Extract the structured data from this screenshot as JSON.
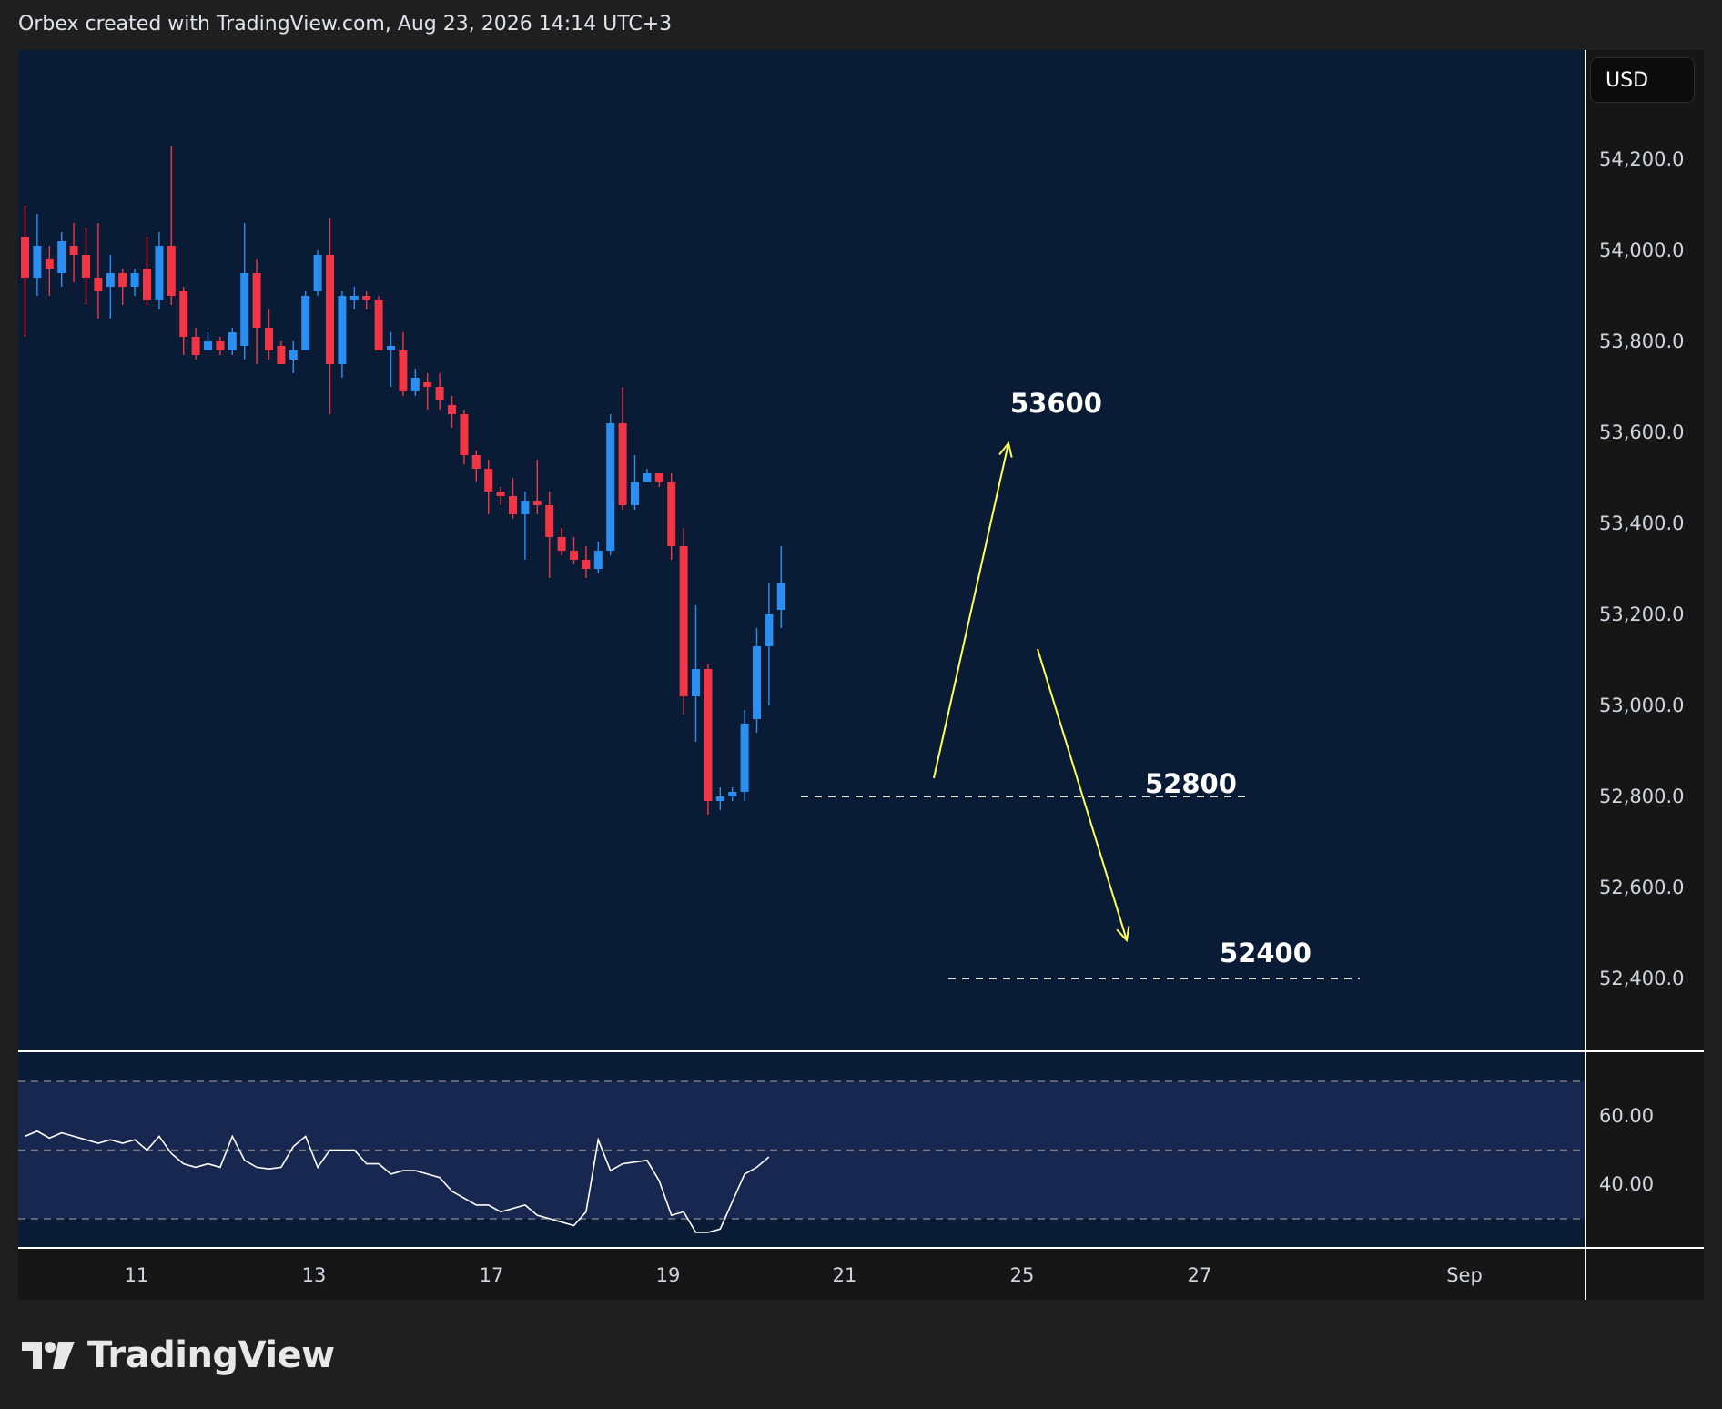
{
  "header": {
    "attribution": "Orbex created with TradingView.com, Aug 23, 2026 14:14 UTC+3"
  },
  "price_axis": {
    "currency_label": "USD"
  },
  "brand": {
    "name": "TradingView",
    "logo_icon": "tradingview-logo-icon"
  },
  "colors": {
    "background": "#0a1b36",
    "up": "#2a8ff0",
    "down": "#f23645",
    "annotation_arrow": "#ffff55",
    "rsi_band": "#172750",
    "rsi_line": "#ffffff"
  },
  "chart_data": [
    {
      "type": "candlestick",
      "title": "",
      "ylim": [
        52240,
        54440
      ],
      "y_ticks": [
        {
          "value": 54200,
          "label": "54,200.0"
        },
        {
          "value": 54000,
          "label": "54,000.0"
        },
        {
          "value": 53800,
          "label": "53,800.0"
        },
        {
          "value": 53600,
          "label": "53,600.0"
        },
        {
          "value": 53400,
          "label": "53,400.0"
        },
        {
          "value": 53200,
          "label": "53,200.0"
        },
        {
          "value": 53000,
          "label": "53,000.0"
        },
        {
          "value": 52800,
          "label": "52,800.0"
        },
        {
          "value": 52600,
          "label": "52,600.0"
        },
        {
          "value": 52400,
          "label": "52,400.0"
        }
      ],
      "x_ticks": [
        "11",
        "13",
        "17",
        "19",
        "21",
        "25",
        "27",
        "Sep"
      ],
      "candles": [
        [
          54030,
          53940,
          54100,
          53810
        ],
        [
          53940,
          54010,
          54080,
          53900
        ],
        [
          53980,
          53960,
          54010,
          53900
        ],
        [
          53950,
          54020,
          54040,
          53920
        ],
        [
          54010,
          53990,
          54060,
          53930
        ],
        [
          53990,
          53940,
          54050,
          53880
        ],
        [
          53940,
          53910,
          54060,
          53850
        ],
        [
          53920,
          53950,
          53990,
          53850
        ],
        [
          53950,
          53920,
          53960,
          53880
        ],
        [
          53920,
          53950,
          53960,
          53900
        ],
        [
          53960,
          53890,
          54030,
          53880
        ],
        [
          53890,
          54010,
          54040,
          53870
        ],
        [
          54010,
          53900,
          54230,
          53880
        ],
        [
          53910,
          53810,
          53920,
          53770
        ],
        [
          53810,
          53770,
          53830,
          53760
        ],
        [
          53780,
          53800,
          53820,
          53780
        ],
        [
          53800,
          53780,
          53810,
          53770
        ],
        [
          53780,
          53820,
          53830,
          53770
        ],
        [
          53790,
          53950,
          54060,
          53760
        ],
        [
          53950,
          53830,
          53980,
          53750
        ],
        [
          53830,
          53780,
          53870,
          53760
        ],
        [
          53790,
          53750,
          53800,
          53750
        ],
        [
          53760,
          53780,
          53800,
          53730
        ],
        [
          53780,
          53900,
          53910,
          53780
        ],
        [
          53910,
          53990,
          54000,
          53900
        ],
        [
          53990,
          53750,
          54070,
          53640
        ],
        [
          53750,
          53900,
          53910,
          53720
        ],
        [
          53890,
          53900,
          53920,
          53870
        ],
        [
          53900,
          53890,
          53910,
          53870
        ],
        [
          53890,
          53780,
          53900,
          53780
        ],
        [
          53780,
          53790,
          53820,
          53700
        ],
        [
          53780,
          53690,
          53820,
          53680
        ],
        [
          53690,
          53720,
          53740,
          53680
        ],
        [
          53710,
          53700,
          53730,
          53650
        ],
        [
          53700,
          53670,
          53730,
          53650
        ],
        [
          53660,
          53640,
          53680,
          53610
        ],
        [
          53640,
          53550,
          53650,
          53530
        ],
        [
          53550,
          53520,
          53560,
          53490
        ],
        [
          53520,
          53470,
          53540,
          53420
        ],
        [
          53470,
          53460,
          53480,
          53440
        ],
        [
          53460,
          53420,
          53500,
          53410
        ],
        [
          53420,
          53450,
          53470,
          53320
        ],
        [
          53450,
          53440,
          53540,
          53420
        ],
        [
          53440,
          53370,
          53470,
          53280
        ],
        [
          53370,
          53340,
          53390,
          53330
        ],
        [
          53340,
          53320,
          53370,
          53310
        ],
        [
          53320,
          53300,
          53350,
          53280
        ],
        [
          53300,
          53340,
          53360,
          53290
        ],
        [
          53340,
          53620,
          53640,
          53330
        ],
        [
          53620,
          53440,
          53700,
          53430
        ],
        [
          53440,
          53490,
          53550,
          53430
        ],
        [
          53490,
          53510,
          53520,
          53500
        ],
        [
          53510,
          53490,
          53510,
          53480
        ],
        [
          53490,
          53350,
          53510,
          53320
        ],
        [
          53350,
          53020,
          53390,
          52980
        ],
        [
          53020,
          53080,
          53220,
          52920
        ],
        [
          53080,
          52790,
          53090,
          52760
        ],
        [
          52790,
          52800,
          52820,
          52770
        ],
        [
          52800,
          52810,
          52820,
          52790
        ],
        [
          52810,
          52960,
          52990,
          52790
        ],
        [
          52970,
          53130,
          53170,
          52940
        ],
        [
          53130,
          53200,
          53270,
          53000
        ],
        [
          53210,
          53270,
          53350,
          53170
        ]
      ],
      "annotations": {
        "levels": [
          {
            "label": "53600",
            "value": 53600
          },
          {
            "label": "52800",
            "value": 52800
          },
          {
            "label": "52400",
            "value": 52400
          }
        ]
      }
    },
    {
      "type": "line",
      "title": "",
      "ylim": [
        21.5,
        78.5
      ],
      "y_ticks": [
        {
          "value": 60,
          "label": "60.00"
        },
        {
          "value": 40,
          "label": "40.00"
        }
      ],
      "band": [
        30,
        70
      ],
      "midline": 50,
      "values": [
        54,
        55.5,
        53.5,
        55,
        54,
        53,
        52,
        53,
        52,
        53,
        50,
        54,
        49,
        46,
        45,
        46,
        45,
        54,
        47,
        45,
        44.5,
        45,
        51,
        54,
        45,
        50,
        50,
        50,
        46,
        46,
        43,
        44,
        44,
        43,
        42,
        38,
        36,
        34,
        34,
        32,
        33,
        34,
        31,
        30,
        29,
        28,
        32,
        53,
        44,
        46,
        46.5,
        47,
        41,
        31,
        32,
        26,
        26,
        27,
        35,
        43,
        45,
        48
      ]
    }
  ]
}
